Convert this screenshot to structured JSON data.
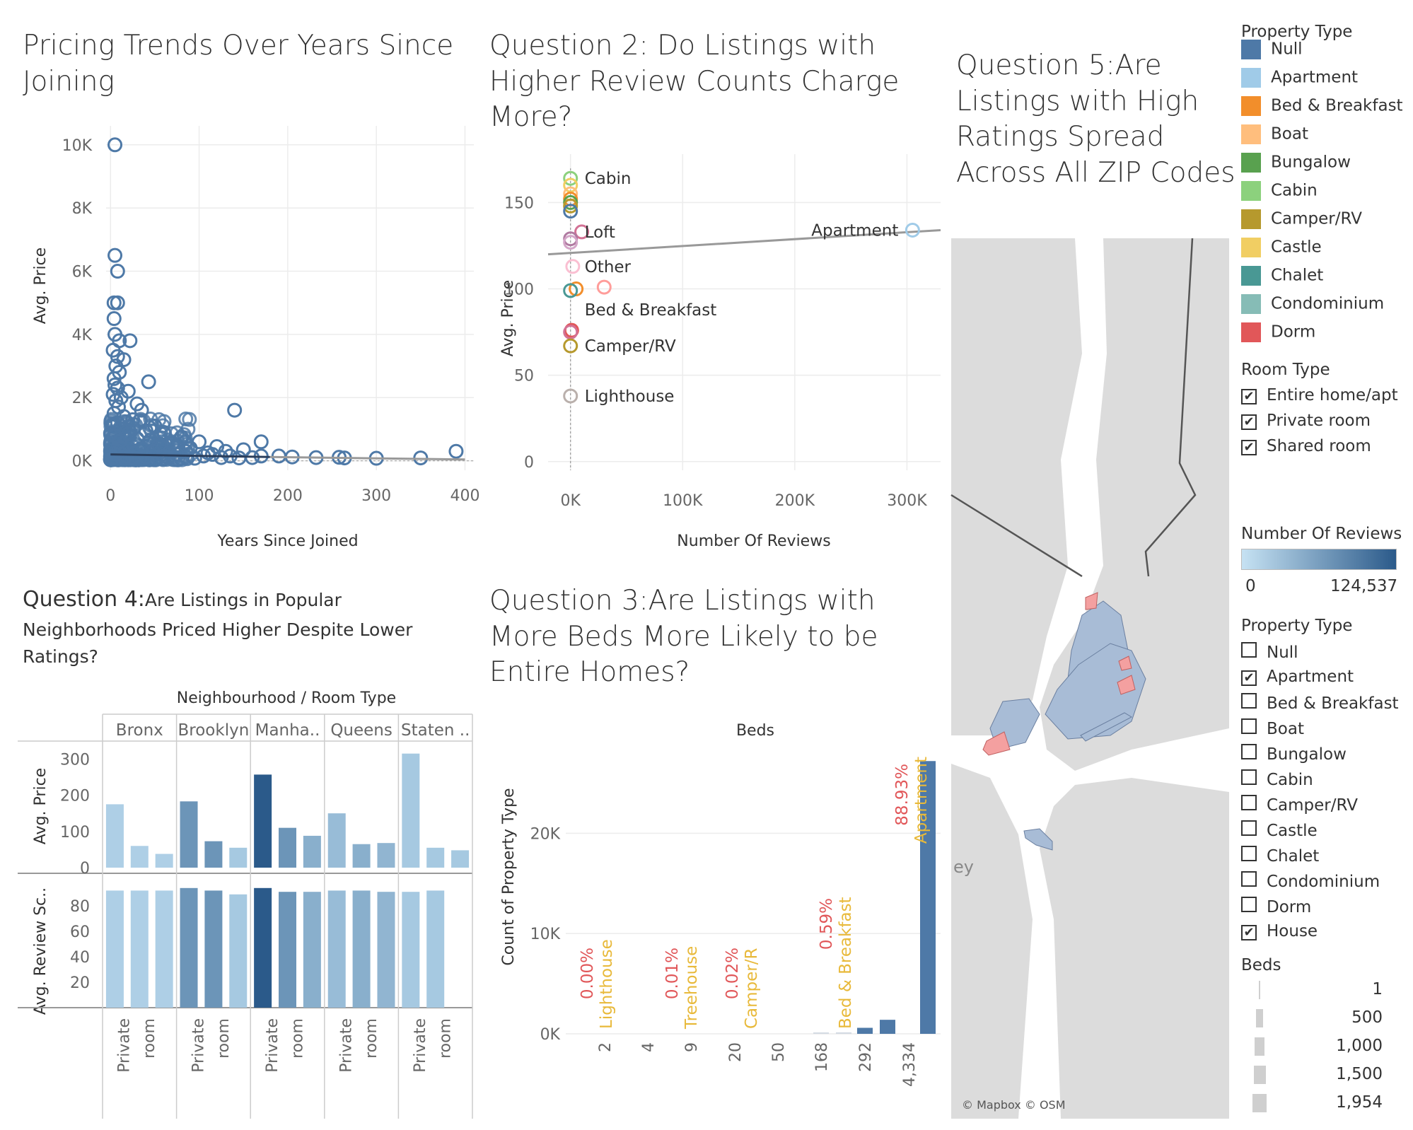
{
  "q1": {
    "title": "Pricing Trends Over Years Since Joining",
    "xlabel": "Years Since Joined",
    "ylabel": "Avg. Price",
    "yticks": [
      "10K",
      "8K",
      "6K",
      "4K",
      "2K",
      "0K"
    ],
    "xticks": [
      "0",
      "100",
      "200",
      "300",
      "400"
    ]
  },
  "q2": {
    "title": "Question 2: Do Listings with Higher Review Counts Charge More?",
    "xlabel": "Number Of Reviews",
    "ylabel": "Avg. Price",
    "yticks": [
      "150",
      "100",
      "50",
      "0"
    ],
    "xticks": [
      "0K",
      "100K",
      "200K",
      "300K"
    ]
  },
  "q3": {
    "title": "Question 3:Are Listings with More Beds More Likely to be Entire Homes?",
    "header": "Beds",
    "ylabel": "Count of Property Type",
    "yticks": [
      "20K",
      "10K",
      "0K"
    ]
  },
  "q4": {
    "title_bold": "Question 4:",
    "title_rest": "Are Listings in Popular Neighborhoods Priced Higher Despite Lower Ratings?",
    "header": "Neighbourhood  /  Room Type",
    "neighbourhoods": [
      "Bronx",
      "Brooklyn",
      "Manha..",
      "Queens",
      "Staten .."
    ],
    "row1_label": "Avg. Price",
    "row2_label": "Avg. Review Sc..",
    "row1_ticks": [
      "300",
      "200",
      "100",
      "0"
    ],
    "row2_ticks": [
      "80",
      "60",
      "40",
      "20"
    ],
    "room_label_a": "Private",
    "room_label_b": "room"
  },
  "q5": {
    "title": "Question 5:Are Listings with High Ratings Spread Across All ZIP Codes",
    "map_label": "ey",
    "attribution": "© Mapbox © OSM"
  },
  "legend_property": {
    "title": "Property Type",
    "items": [
      {
        "label": "Null",
        "color": "#4e79a7"
      },
      {
        "label": "Apartment",
        "color": "#a0cbe8"
      },
      {
        "label": "Bed & Breakfast",
        "color": "#f28e2b"
      },
      {
        "label": "Boat",
        "color": "#ffbe7d"
      },
      {
        "label": "Bungalow",
        "color": "#59a14f"
      },
      {
        "label": "Cabin",
        "color": "#8cd17d"
      },
      {
        "label": "Camper/RV",
        "color": "#b6992d"
      },
      {
        "label": "Castle",
        "color": "#f1ce63"
      },
      {
        "label": "Chalet",
        "color": "#499894"
      },
      {
        "label": "Condominium",
        "color": "#86bcb6"
      },
      {
        "label": "Dorm",
        "color": "#e15759"
      }
    ]
  },
  "filter_room": {
    "title": "Room Type",
    "items": [
      {
        "label": "Entire home/apt",
        "checked": "✔"
      },
      {
        "label": "Private room",
        "checked": "✔"
      },
      {
        "label": "Shared room",
        "checked": "✔"
      }
    ]
  },
  "legend_reviews": {
    "title": "Number Of Reviews",
    "min": "0",
    "max": "124,537",
    "color_low": "#c6e2f3",
    "color_high": "#2b5a8a"
  },
  "filter_property": {
    "title": "Property Type",
    "items": [
      {
        "label": "Null",
        "checked": ""
      },
      {
        "label": "Apartment",
        "checked": "✔"
      },
      {
        "label": "Bed & Breakfast",
        "checked": ""
      },
      {
        "label": "Boat",
        "checked": ""
      },
      {
        "label": "Bungalow",
        "checked": ""
      },
      {
        "label": "Cabin",
        "checked": ""
      },
      {
        "label": "Camper/RV",
        "checked": ""
      },
      {
        "label": "Castle",
        "checked": ""
      },
      {
        "label": "Chalet",
        "checked": ""
      },
      {
        "label": "Condominium",
        "checked": ""
      },
      {
        "label": "Dorm",
        "checked": ""
      },
      {
        "label": "House",
        "checked": "✔"
      }
    ]
  },
  "legend_beds": {
    "title": "Beds",
    "items": [
      "1",
      "500",
      "1,000",
      "1,500",
      "1,954"
    ]
  },
  "chart_data": [
    {
      "type": "scatter",
      "title": "Pricing Trends Over Years Since Joining",
      "xlabel": "Years Since Joined",
      "ylabel": "Avg. Price",
      "xlim": [
        -5,
        410
      ],
      "ylim": [
        -300,
        10600
      ],
      "points": [
        [
          5,
          10000
        ],
        [
          5,
          6500
        ],
        [
          8,
          6000
        ],
        [
          4,
          5000
        ],
        [
          8,
          5000
        ],
        [
          4,
          4500
        ],
        [
          5,
          4000
        ],
        [
          10,
          3800
        ],
        [
          22,
          3800
        ],
        [
          3,
          3500
        ],
        [
          8,
          3300
        ],
        [
          15,
          3200
        ],
        [
          6,
          3000
        ],
        [
          10,
          2800
        ],
        [
          4,
          2600
        ],
        [
          43,
          2500
        ],
        [
          5,
          2400
        ],
        [
          8,
          2300
        ],
        [
          20,
          2200
        ],
        [
          3,
          2100
        ],
        [
          12,
          2000
        ],
        [
          6,
          1900
        ],
        [
          30,
          1800
        ],
        [
          9,
          1700
        ],
        [
          140,
          1600
        ],
        [
          35,
          1600
        ],
        [
          4,
          1500
        ],
        [
          15,
          1400
        ],
        [
          25,
          1300
        ],
        [
          8,
          1200
        ],
        [
          50,
          1100
        ],
        [
          12,
          1000
        ],
        [
          40,
          950
        ],
        [
          60,
          900
        ],
        [
          20,
          850
        ],
        [
          5,
          800
        ],
        [
          80,
          750
        ],
        [
          30,
          700
        ],
        [
          45,
          650
        ],
        [
          100,
          600
        ],
        [
          10,
          600
        ],
        [
          70,
          550
        ],
        [
          55,
          500
        ],
        [
          120,
          450
        ],
        [
          170,
          600
        ],
        [
          90,
          400
        ],
        [
          150,
          350
        ],
        [
          130,
          300
        ],
        [
          110,
          250
        ],
        [
          75,
          200
        ],
        [
          60,
          150
        ],
        [
          40,
          120
        ],
        [
          25,
          100
        ],
        [
          15,
          80
        ],
        [
          190,
          150
        ],
        [
          205,
          120
        ],
        [
          232,
          100
        ],
        [
          258,
          110
        ],
        [
          264,
          90
        ],
        [
          300,
          80
        ],
        [
          350,
          90
        ],
        [
          390,
          300
        ],
        [
          3,
          100
        ],
        [
          6,
          200
        ],
        [
          9,
          300
        ],
        [
          12,
          400
        ],
        [
          18,
          150
        ],
        [
          27,
          250
        ],
        [
          33,
          50
        ],
        [
          48,
          300
        ],
        [
          65,
          100
        ],
        [
          85,
          300
        ],
        [
          95,
          80
        ],
        [
          105,
          150
        ],
        [
          115,
          200
        ],
        [
          125,
          100
        ],
        [
          135,
          150
        ],
        [
          145,
          90
        ],
        [
          160,
          100
        ],
        [
          170,
          150
        ]
      ],
      "trend": [
        [
          0,
          200
        ],
        [
          400,
          40
        ]
      ]
    },
    {
      "type": "scatter",
      "title": "Question 2: Do Listings with Higher Review Counts Charge More?",
      "xlabel": "Number Of Reviews",
      "ylabel": "Avg. Price",
      "xlim": [
        -20000,
        330000
      ],
      "ylim": [
        -5,
        178
      ],
      "points": [
        {
          "label": "Cabin",
          "x": 0,
          "y": 164,
          "color": "#8cd17d"
        },
        {
          "label": "",
          "x": 0,
          "y": 160,
          "color": "#f1ce63"
        },
        {
          "label": "",
          "x": 0,
          "y": 155,
          "color": "#ffbe7d"
        },
        {
          "label": "",
          "x": 0,
          "y": 152,
          "color": "#f28e2b"
        },
        {
          "label": "",
          "x": 0,
          "y": 150,
          "color": "#59a14f"
        },
        {
          "label": "",
          "x": 0,
          "y": 148,
          "color": "#b6992d"
        },
        {
          "label": "",
          "x": 0,
          "y": 145,
          "color": "#4e79a7"
        },
        {
          "label": "Loft",
          "x": 10000,
          "y": 133,
          "color": "#d37295"
        },
        {
          "label": "",
          "x": 0,
          "y": 129,
          "color": "#b07aa1"
        },
        {
          "label": "",
          "x": 0,
          "y": 127,
          "color": "#d4a6c8"
        },
        {
          "label": "Other",
          "x": 2000,
          "y": 113,
          "color": "#fabfd2"
        },
        {
          "label": "",
          "x": 30000,
          "y": 101,
          "color": "#ff9d9a"
        },
        {
          "label": "",
          "x": 5000,
          "y": 100,
          "color": "#f28e2b"
        },
        {
          "label": "",
          "x": 0,
          "y": 99,
          "color": "#499894"
        },
        {
          "label": "Bed & Breakfast",
          "x": 0,
          "y": 88,
          "color": "none"
        },
        {
          "label": "",
          "x": 1000,
          "y": 76,
          "color": "#e15759"
        },
        {
          "label": "",
          "x": 0,
          "y": 75,
          "color": "#d37295"
        },
        {
          "label": "Camper/RV",
          "x": 0,
          "y": 67,
          "color": "#b6992d"
        },
        {
          "label": "Lighthouse",
          "x": 0,
          "y": 38,
          "color": "#bab0ac"
        },
        {
          "label": "Apartment",
          "x": 305000,
          "y": 134,
          "color": "#a0cbe8"
        }
      ],
      "trend": [
        [
          -20000,
          120
        ],
        [
          330000,
          134
        ]
      ]
    },
    {
      "type": "bar",
      "title": "Question 3:Are Listings with More Beds More Likely to be Entire Homes?",
      "xlabel": "Beds",
      "ylabel": "Count of Property Type",
      "ylim": [
        0,
        27500
      ],
      "categories": [
        "2",
        "4",
        "9",
        "20",
        "50",
        "168",
        "292",
        "4,334"
      ],
      "values": [
        0,
        0,
        0,
        5,
        20,
        120,
        600,
        27200
      ],
      "extra_bars": [
        {
          "after": "168",
          "value": 150
        },
        {
          "after": "292",
          "value": 1400
        }
      ],
      "annotations": [
        {
          "at": "2",
          "pct": "0.00%",
          "label": "Lighthouse"
        },
        {
          "at": "9",
          "pct": "0.01%",
          "label": "Treehouse"
        },
        {
          "at": "20",
          "pct": "0.02%",
          "label": "Camper/R"
        },
        {
          "at": "168",
          "pct": "0.59%",
          "label": "Bed & Breakfast"
        },
        {
          "at": "4,334",
          "pct": "88.93%",
          "label": "Apartment"
        }
      ]
    },
    {
      "type": "bar",
      "title": "Question 4:Are Listings in Popular Neighborhoods Priced Higher Despite Lower Ratings?",
      "categories": [
        "Bronx",
        "Brooklyn",
        "Manha..",
        "Queens",
        "Staten .."
      ],
      "series": [
        {
          "name": "Avg. Price",
          "values": [
            [
              175,
              60,
              38
            ],
            [
              183,
              73,
              55
            ],
            [
              257,
              110,
              88
            ],
            [
              150,
              65,
              68
            ],
            [
              315,
              55,
              48
            ]
          ]
        },
        {
          "name": "Avg. Review Sc..",
          "values": [
            [
              92,
              92,
              92
            ],
            [
              94,
              92,
              89
            ],
            [
              94,
              91,
              91
            ],
            [
              92,
              92,
              91
            ],
            [
              91,
              92,
              0
            ]
          ]
        }
      ],
      "ylim_price": [
        0,
        330
      ],
      "ylim_review": [
        0,
        100
      ],
      "intensity": [
        [
          0.1,
          0.1,
          0.1
        ],
        [
          0.55,
          0.55,
          0.15
        ],
        [
          1.0,
          0.55,
          0.35
        ],
        [
          0.25,
          0.35,
          0.3
        ],
        [
          0.15,
          0.15,
          0.15
        ]
      ]
    }
  ]
}
